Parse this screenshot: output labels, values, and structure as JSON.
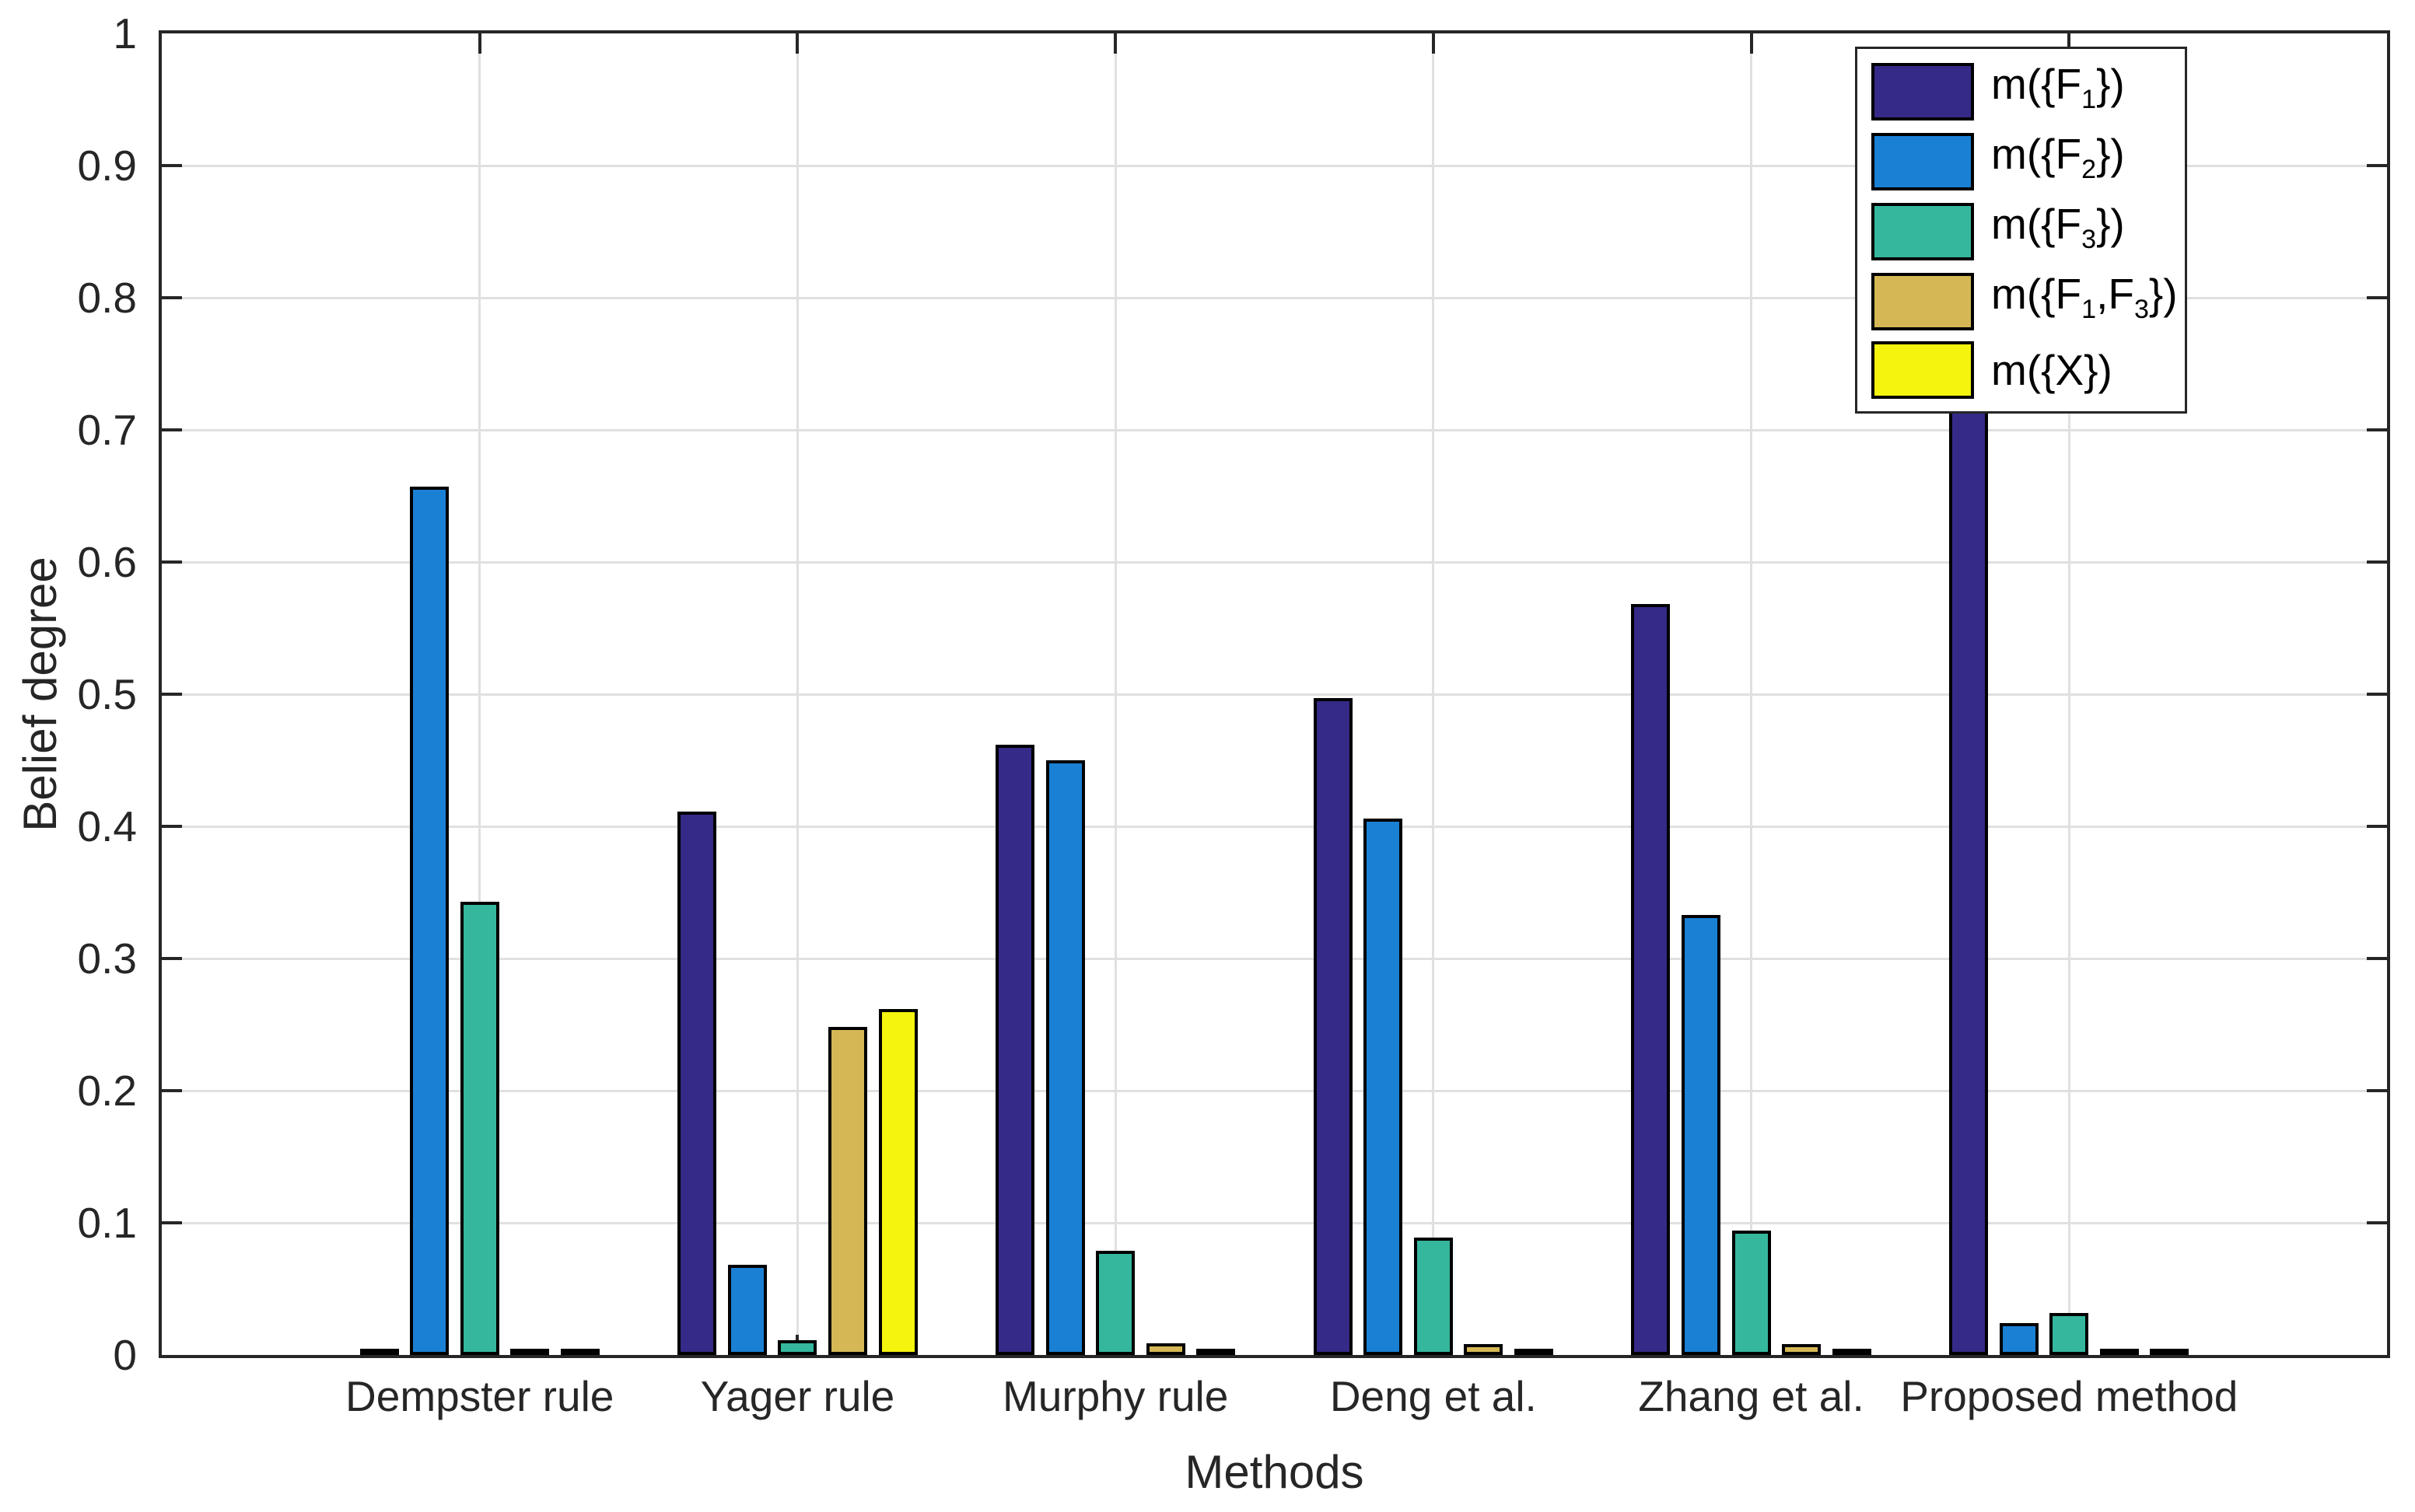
{
  "chart_data": {
    "type": "bar",
    "title": "",
    "xlabel": "Methods",
    "ylabel": "Belief degree",
    "ylim": [
      0,
      1
    ],
    "grid": true,
    "legend_position": "top-right",
    "categories": [
      "Dempster rule",
      "Yager rule",
      "Murphy rule",
      "Deng et al.",
      "Zhang et al.",
      "Proposed method"
    ],
    "ytick_values": [
      0,
      0.1,
      0.2,
      0.3,
      0.4,
      0.5,
      0.6,
      0.7,
      0.8,
      0.9,
      1
    ],
    "ytick_labels": [
      "0",
      "0.1",
      "0.2",
      "0.3",
      "0.4",
      "0.5",
      "0.6",
      "0.7",
      "0.8",
      "0.9",
      "1"
    ],
    "series": [
      {
        "name": "m({F1})",
        "label_segments": [
          {
            "t": "m({F"
          },
          {
            "t": "1",
            "sub": true
          },
          {
            "t": "})"
          }
        ],
        "color": "#352a87",
        "values": [
          0.0,
          0.411,
          0.462,
          0.497,
          0.568,
          0.941
        ]
      },
      {
        "name": "m({F2})",
        "label_segments": [
          {
            "t": "m({F"
          },
          {
            "t": "2",
            "sub": true
          },
          {
            "t": "})"
          }
        ],
        "color": "#1a80d4",
        "values": [
          0.657,
          0.068,
          0.45,
          0.406,
          0.333,
          0.024
        ]
      },
      {
        "name": "m({F3})",
        "label_segments": [
          {
            "t": "m({F"
          },
          {
            "t": "3",
            "sub": true
          },
          {
            "t": "})"
          }
        ],
        "color": "#35b79e",
        "values": [
          0.343,
          0.011,
          0.079,
          0.089,
          0.094,
          0.032
        ]
      },
      {
        "name": "m({F1,F3})",
        "label_segments": [
          {
            "t": "m({F"
          },
          {
            "t": "1",
            "sub": true
          },
          {
            "t": ",F"
          },
          {
            "t": "3",
            "sub": true
          },
          {
            "t": "})"
          }
        ],
        "color": "#d5b855",
        "values": [
          0.0,
          0.248,
          0.009,
          0.008,
          0.008,
          0.003
        ]
      },
      {
        "name": "m({X})",
        "label_segments": [
          {
            "t": "m({X})"
          }
        ],
        "color": "#f4f40f",
        "values": [
          0.0,
          0.262,
          0.0,
          0.001,
          0.001,
          0.0
        ]
      }
    ]
  },
  "style_colors": {
    "axis": "#262626",
    "grid": "#e0e0e0",
    "bar_outline": "#000000",
    "background": "#ffffff"
  }
}
